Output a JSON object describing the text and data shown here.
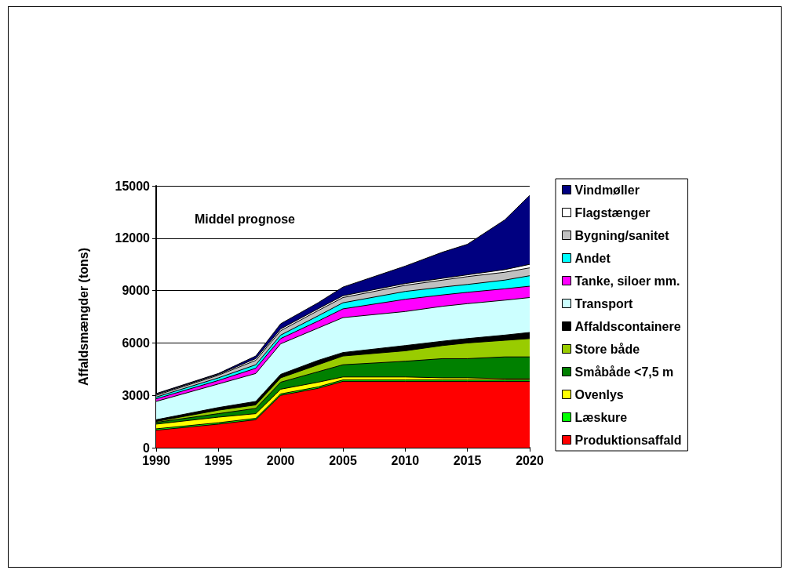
{
  "chart_data": {
    "type": "area",
    "title": "Middel prognose",
    "ylabel": "Affaldsmængder (tons)",
    "stacked": true,
    "x": [
      1990,
      1995,
      1998,
      2000,
      2003,
      2005,
      2010,
      2013,
      2015,
      2018,
      2020
    ],
    "xlim": [
      1990,
      2020
    ],
    "xticks": [
      1990,
      1995,
      2000,
      2005,
      2010,
      2015,
      2020
    ],
    "ylim": [
      0,
      15000
    ],
    "yticks": [
      0,
      3000,
      6000,
      9000,
      12000,
      15000
    ],
    "grid": "y",
    "legend": "right",
    "line_style": "solid",
    "marker": "none",
    "series": [
      {
        "name": "Produktionsaffald",
        "color": "#ff0000",
        "values": [
          1000,
          1350,
          1600,
          3000,
          3400,
          3800,
          3800,
          3800,
          3800,
          3800,
          3800
        ]
      },
      {
        "name": "Læskure",
        "color": "#00ff00",
        "values": [
          80,
          80,
          80,
          80,
          80,
          80,
          80,
          80,
          80,
          80,
          80
        ]
      },
      {
        "name": "Ovenlys",
        "color": "#ffff00",
        "values": [
          270,
          320,
          270,
          270,
          270,
          170,
          170,
          120,
          120,
          70,
          70
        ]
      },
      {
        "name": "Småbåde <7,5 m",
        "color": "#008000",
        "values": [
          100,
          200,
          300,
          400,
          600,
          700,
          900,
          1100,
          1100,
          1250,
          1250
        ]
      },
      {
        "name": "Store både",
        "color": "#99cc00",
        "values": [
          50,
          200,
          200,
          250,
          400,
          500,
          600,
          750,
          900,
          950,
          1050
        ]
      },
      {
        "name": "Affaldscontainere",
        "color": "#000000",
        "values": [
          100,
          150,
          200,
          200,
          250,
          200,
          300,
          250,
          250,
          300,
          350
        ]
      },
      {
        "name": "Transport",
        "color": "#ccffff",
        "values": [
          1050,
          1350,
          1600,
          1750,
          1850,
          2000,
          1950,
          2000,
          2000,
          2000,
          2000
        ]
      },
      {
        "name": "Tanke, siloer mm.",
        "color": "#ff00ff",
        "values": [
          150,
          200,
          300,
          300,
          400,
          500,
          700,
          650,
          650,
          650,
          650
        ]
      },
      {
        "name": "Andet",
        "color": "#00ffff",
        "values": [
          100,
          150,
          200,
          200,
          300,
          350,
          450,
          450,
          450,
          500,
          600
        ]
      },
      {
        "name": "Bygning/sanitet",
        "color": "#c0c0c0",
        "values": [
          100,
          150,
          250,
          250,
          300,
          300,
          350,
          400,
          450,
          450,
          450
        ]
      },
      {
        "name": "Flagstænger",
        "color": "#ffffff",
        "values": [
          50,
          50,
          100,
          100,
          100,
          100,
          100,
          100,
          100,
          150,
          200
        ]
      },
      {
        "name": "Vindmøller",
        "color": "#000080",
        "values": [
          50,
          50,
          150,
          300,
          350,
          500,
          1000,
          1500,
          1750,
          2850,
          3950
        ]
      }
    ]
  }
}
